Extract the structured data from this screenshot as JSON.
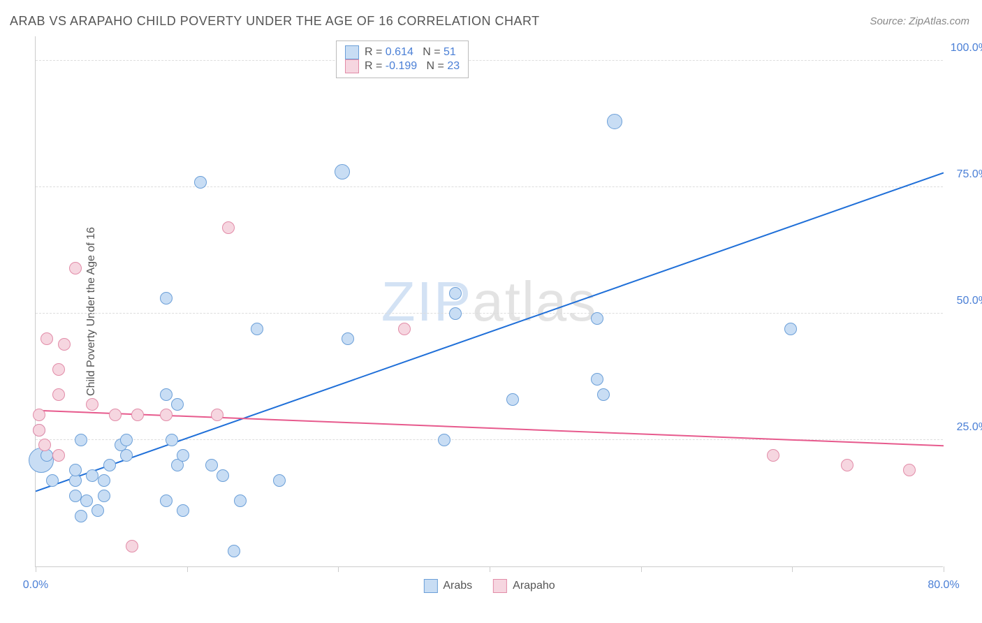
{
  "title": "ARAB VS ARAPAHO CHILD POVERTY UNDER THE AGE OF 16 CORRELATION CHART",
  "source": "Source: ZipAtlas.com",
  "ylabel": "Child Poverty Under the Age of 16",
  "watermark_zip": "ZIP",
  "watermark_atlas": "atlas",
  "chart": {
    "type": "scatter",
    "xlim": [
      0,
      80
    ],
    "ylim": [
      0,
      105
    ],
    "xticks": [
      0,
      13.33,
      26.67,
      40,
      53.33,
      66.67,
      80
    ],
    "xtick_labels": {
      "0": "0.0%",
      "80": "80.0%"
    },
    "yticks": [
      25,
      50,
      75,
      100
    ],
    "ytick_labels": [
      "25.0%",
      "50.0%",
      "75.0%",
      "100.0%"
    ],
    "grid_color": "#dddddd",
    "border_color": "#cccccc",
    "background_color": "#ffffff",
    "tick_label_color": "#4a7fd6",
    "point_radius": 9,
    "point_stroke_width": 1.5,
    "series": [
      {
        "name": "Arabs",
        "fill": "#c8ddf4",
        "stroke": "#6b9fd8",
        "R": "0.614",
        "N": "51",
        "trend": {
          "color": "#1f6fd8",
          "width": 2,
          "x1": 0,
          "y1": 15,
          "x2": 80,
          "y2": 78
        },
        "points": [
          {
            "x": 0.5,
            "y": 21,
            "r": 18
          },
          {
            "x": 0.3,
            "y": 27
          },
          {
            "x": 1.5,
            "y": 17
          },
          {
            "x": 1.0,
            "y": 22
          },
          {
            "x": 3.5,
            "y": 14
          },
          {
            "x": 3.5,
            "y": 17
          },
          {
            "x": 3.5,
            "y": 19
          },
          {
            "x": 4.0,
            "y": 10
          },
          {
            "x": 4.5,
            "y": 13
          },
          {
            "x": 4.0,
            "y": 25
          },
          {
            "x": 5.0,
            "y": 18
          },
          {
            "x": 5.5,
            "y": 11
          },
          {
            "x": 6.0,
            "y": 17
          },
          {
            "x": 6.0,
            "y": 14
          },
          {
            "x": 6.5,
            "y": 20
          },
          {
            "x": 7.5,
            "y": 24
          },
          {
            "x": 8.0,
            "y": 22
          },
          {
            "x": 8.0,
            "y": 25
          },
          {
            "x": 11.5,
            "y": 13
          },
          {
            "x": 11.5,
            "y": 34
          },
          {
            "x": 11.5,
            "y": 53
          },
          {
            "x": 12.0,
            "y": 25
          },
          {
            "x": 12.5,
            "y": 20
          },
          {
            "x": 13.0,
            "y": 11
          },
          {
            "x": 12.5,
            "y": 32
          },
          {
            "x": 13.0,
            "y": 22
          },
          {
            "x": 14.5,
            "y": 76
          },
          {
            "x": 15.5,
            "y": 20
          },
          {
            "x": 16.5,
            "y": 18
          },
          {
            "x": 17.5,
            "y": 3
          },
          {
            "x": 18.0,
            "y": 13
          },
          {
            "x": 19.5,
            "y": 47
          },
          {
            "x": 21.5,
            "y": 17
          },
          {
            "x": 27.0,
            "y": 78,
            "r": 11
          },
          {
            "x": 27.5,
            "y": 45
          },
          {
            "x": 36.0,
            "y": 25
          },
          {
            "x": 37.0,
            "y": 50
          },
          {
            "x": 37.0,
            "y": 54
          },
          {
            "x": 42.0,
            "y": 33
          },
          {
            "x": 49.5,
            "y": 49
          },
          {
            "x": 50.0,
            "y": 34
          },
          {
            "x": 49.5,
            "y": 37
          },
          {
            "x": 51.0,
            "y": 88,
            "r": 11
          },
          {
            "x": 66.5,
            "y": 47
          }
        ]
      },
      {
        "name": "Arapaho",
        "fill": "#f6d6e0",
        "stroke": "#e28ca8",
        "R": "-0.199",
        "N": "23",
        "trend": {
          "color": "#e75a8d",
          "width": 2,
          "x1": 0,
          "y1": 31,
          "x2": 80,
          "y2": 24
        },
        "points": [
          {
            "x": 0.3,
            "y": 30
          },
          {
            "x": 0.3,
            "y": 27
          },
          {
            "x": 0.8,
            "y": 24
          },
          {
            "x": 1.0,
            "y": 45
          },
          {
            "x": 2.0,
            "y": 22
          },
          {
            "x": 2.0,
            "y": 34
          },
          {
            "x": 2.0,
            "y": 39
          },
          {
            "x": 2.5,
            "y": 44
          },
          {
            "x": 3.5,
            "y": 59
          },
          {
            "x": 5.0,
            "y": 32
          },
          {
            "x": 7.0,
            "y": 30
          },
          {
            "x": 8.5,
            "y": 4
          },
          {
            "x": 9.0,
            "y": 30
          },
          {
            "x": 11.5,
            "y": 30
          },
          {
            "x": 16.0,
            "y": 30
          },
          {
            "x": 17.0,
            "y": 67
          },
          {
            "x": 32.5,
            "y": 47
          },
          {
            "x": 65.0,
            "y": 22
          },
          {
            "x": 71.5,
            "y": 20
          },
          {
            "x": 77.0,
            "y": 19
          }
        ]
      }
    ],
    "legend_bottom": [
      {
        "label": "Arabs",
        "fill": "#c8ddf4",
        "stroke": "#6b9fd8"
      },
      {
        "label": "Arapaho",
        "fill": "#f6d6e0",
        "stroke": "#e28ca8"
      }
    ]
  }
}
